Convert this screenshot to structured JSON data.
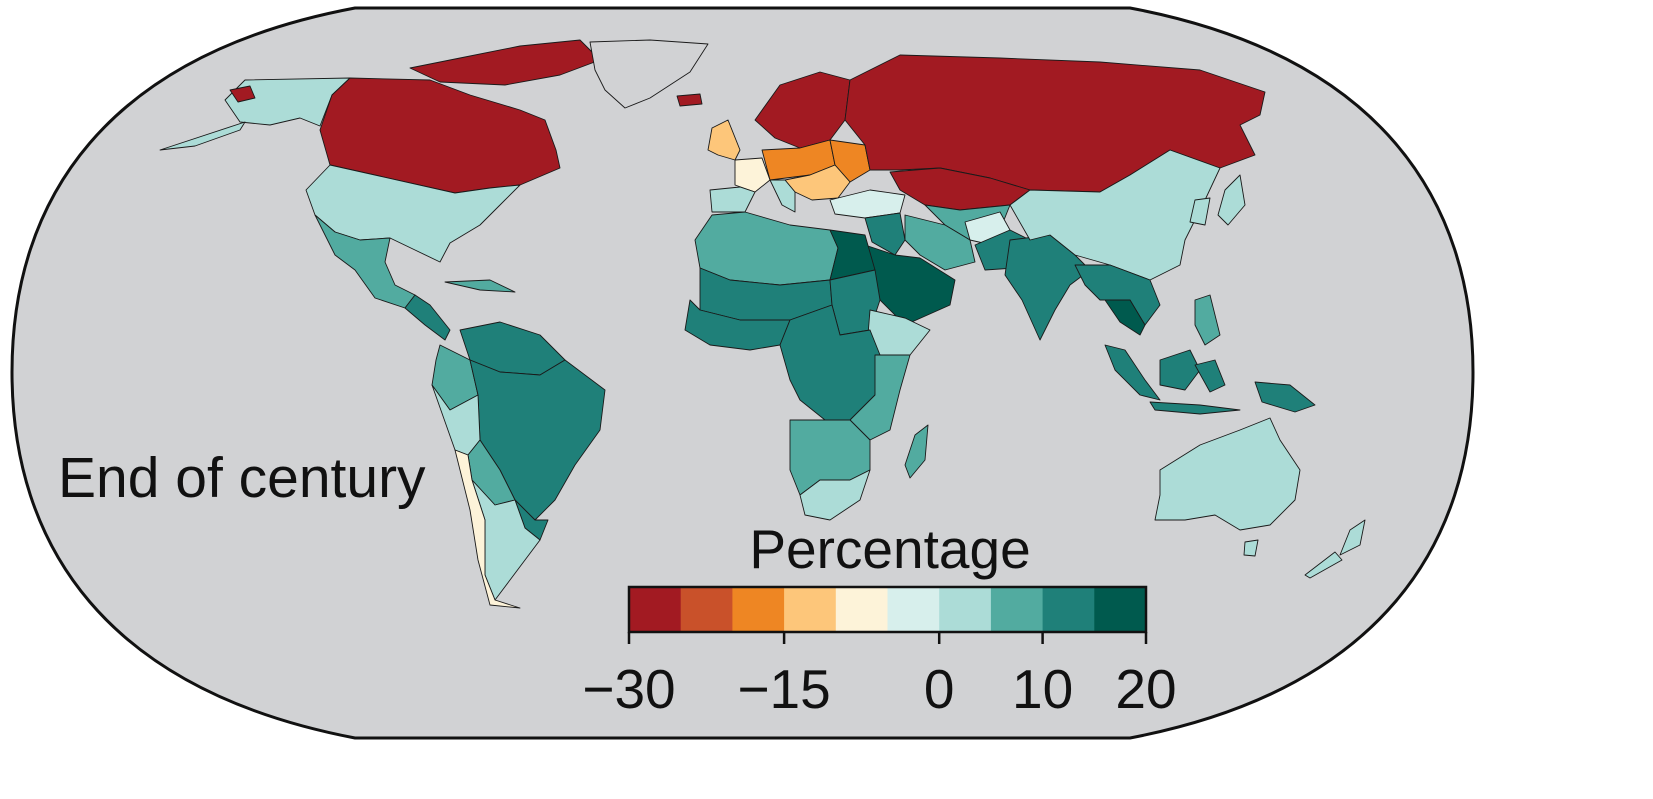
{
  "map": {
    "panel_label": "End of century",
    "ocean_color": "#d1d2d4",
    "border_color": "#1a1a1a"
  },
  "legend": {
    "title": "Percentage",
    "tick_labels": [
      "−30",
      "−15",
      "0",
      "10",
      "20"
    ],
    "tick_values": [
      -30,
      -15,
      0,
      10,
      20
    ],
    "range": [
      -30,
      20
    ],
    "bins": [
      {
        "from": -30,
        "to": -25,
        "color": "#a21a22"
      },
      {
        "from": -25,
        "to": -20,
        "color": "#c9512a"
      },
      {
        "from": -20,
        "to": -15,
        "color": "#ee8623"
      },
      {
        "from": -15,
        "to": -10,
        "color": "#fdc67a"
      },
      {
        "from": -10,
        "to": -5,
        "color": "#fdf3d9"
      },
      {
        "from": -5,
        "to": 0,
        "color": "#d7efec"
      },
      {
        "from": 0,
        "to": 5,
        "color": "#acdcd7"
      },
      {
        "from": 5,
        "to": 10,
        "color": "#52aba0"
      },
      {
        "from": 10,
        "to": 15,
        "color": "#1f8079"
      },
      {
        "from": 15,
        "to": 20,
        "color": "#005a4e"
      }
    ]
  },
  "regions": [
    {
      "name": "alaska",
      "color": "#acdcd7"
    },
    {
      "name": "canada",
      "color": "#a21a22"
    },
    {
      "name": "canada-arctic-islands",
      "color": "#a21a22"
    },
    {
      "name": "greenland",
      "color": "#d1d2d4"
    },
    {
      "name": "iceland",
      "color": "#a21a22"
    },
    {
      "name": "usa",
      "color": "#acdcd7"
    },
    {
      "name": "mexico",
      "color": "#52aba0"
    },
    {
      "name": "central-america",
      "color": "#1f8079"
    },
    {
      "name": "caribbean",
      "color": "#52aba0"
    },
    {
      "name": "venezuela-guyanas",
      "color": "#1f8079"
    },
    {
      "name": "brazil",
      "color": "#1f8079"
    },
    {
      "name": "andes-north",
      "color": "#52aba0"
    },
    {
      "name": "peru",
      "color": "#acdcd7"
    },
    {
      "name": "bolivia-paraguay",
      "color": "#52aba0"
    },
    {
      "name": "southern-brazil-uruguay",
      "color": "#1f8079"
    },
    {
      "name": "argentina",
      "color": "#acdcd7"
    },
    {
      "name": "chile",
      "color": "#fdf3d9"
    },
    {
      "name": "scandinavia",
      "color": "#a21a22"
    },
    {
      "name": "uk-ireland",
      "color": "#fdc67a"
    },
    {
      "name": "france",
      "color": "#fdf3d9"
    },
    {
      "name": "iberia",
      "color": "#acdcd7"
    },
    {
      "name": "central-europe",
      "color": "#ee8623"
    },
    {
      "name": "eastern-europe",
      "color": "#ee8623"
    },
    {
      "name": "balkans",
      "color": "#fdc67a"
    },
    {
      "name": "italy",
      "color": "#acdcd7"
    },
    {
      "name": "turkey",
      "color": "#d7efec"
    },
    {
      "name": "russia",
      "color": "#a21a22"
    },
    {
      "name": "kazakhstan",
      "color": "#a21a22"
    },
    {
      "name": "central-asia",
      "color": "#52aba0"
    },
    {
      "name": "iran",
      "color": "#52aba0"
    },
    {
      "name": "afghanistan",
      "color": "#d7efec"
    },
    {
      "name": "arabia",
      "color": "#005a4e"
    },
    {
      "name": "iraq-syria",
      "color": "#1f8079"
    },
    {
      "name": "egypt",
      "color": "#005a4e"
    },
    {
      "name": "north-africa",
      "color": "#52aba0"
    },
    {
      "name": "sahel",
      "color": "#1f8079"
    },
    {
      "name": "west-africa",
      "color": "#1f8079"
    },
    {
      "name": "sudan",
      "color": "#1f8079"
    },
    {
      "name": "ethiopia",
      "color": "#acdcd7"
    },
    {
      "name": "central-africa",
      "color": "#1f8079"
    },
    {
      "name": "east-africa",
      "color": "#52aba0"
    },
    {
      "name": "southern-africa",
      "color": "#52aba0"
    },
    {
      "name": "south-africa",
      "color": "#acdcd7"
    },
    {
      "name": "madagascar",
      "color": "#52aba0"
    },
    {
      "name": "india",
      "color": "#1f8079"
    },
    {
      "name": "pakistan",
      "color": "#1f8079"
    },
    {
      "name": "china-mongolia",
      "color": "#acdcd7"
    },
    {
      "name": "korea-japan",
      "color": "#acdcd7"
    },
    {
      "name": "indochina",
      "color": "#1f8079"
    },
    {
      "name": "thailand-cambodia",
      "color": "#005a4e"
    },
    {
      "name": "philippines",
      "color": "#52aba0"
    },
    {
      "name": "malaysia-sumatra",
      "color": "#1f8079"
    },
    {
      "name": "borneo",
      "color": "#1f8079"
    },
    {
      "name": "indonesia-east",
      "color": "#1f8079"
    },
    {
      "name": "new-guinea",
      "color": "#1f8079"
    },
    {
      "name": "australia",
      "color": "#acdcd7"
    },
    {
      "name": "tasmania",
      "color": "#acdcd7"
    },
    {
      "name": "new-zealand",
      "color": "#acdcd7"
    }
  ]
}
